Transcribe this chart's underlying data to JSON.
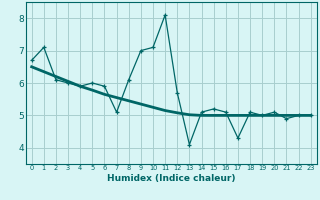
{
  "xlabel": "Humidex (Indice chaleur)",
  "x": [
    0,
    1,
    2,
    3,
    4,
    5,
    6,
    7,
    8,
    9,
    10,
    11,
    12,
    13,
    14,
    15,
    16,
    17,
    18,
    19,
    20,
    21,
    22,
    23
  ],
  "y_line": [
    6.7,
    7.1,
    6.1,
    6.0,
    5.9,
    6.0,
    5.9,
    5.1,
    6.1,
    7.0,
    7.1,
    8.1,
    5.7,
    4.1,
    5.1,
    5.2,
    5.1,
    4.3,
    5.1,
    5.0,
    5.1,
    4.9,
    5.0,
    5.0
  ],
  "y_trend": [
    6.5,
    6.35,
    6.2,
    6.05,
    5.9,
    5.78,
    5.65,
    5.55,
    5.45,
    5.35,
    5.25,
    5.15,
    5.08,
    5.02,
    5.0,
    5.0,
    5.0,
    5.0,
    5.0,
    5.0,
    5.0,
    5.0,
    5.0,
    5.0
  ],
  "line_color": "#006666",
  "trend_color": "#006666",
  "bg_color": "#d8f5f5",
  "grid_color": "#a8cece",
  "ylim": [
    3.5,
    8.5
  ],
  "xlim": [
    -0.5,
    23.5
  ],
  "yticks": [
    4,
    5,
    6,
    7,
    8
  ],
  "xticks": [
    0,
    1,
    2,
    3,
    4,
    5,
    6,
    7,
    8,
    9,
    10,
    11,
    12,
    13,
    14,
    15,
    16,
    17,
    18,
    19,
    20,
    21,
    22,
    23
  ]
}
